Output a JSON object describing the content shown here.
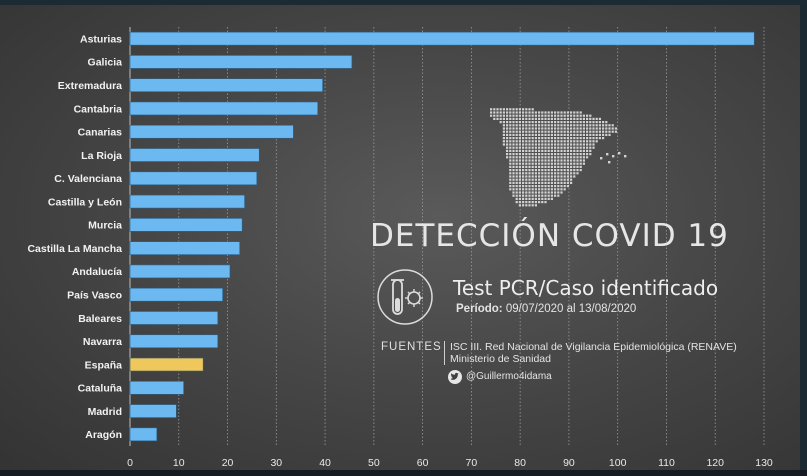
{
  "chart_data": {
    "type": "bar",
    "orientation": "horizontal",
    "title": "DETECCIÓN COVID 19",
    "subtitle": "Test PCR/Caso identificado",
    "categories": [
      "Asturias",
      "Galicia",
      "Extremadura",
      "Cantabria",
      "Canarias",
      "La Rioja",
      "C. Valenciana",
      "Castilla y León",
      "Murcia",
      "Castilla La Mancha",
      "Andalucía",
      "País Vasco",
      "Baleares",
      "Navarra",
      "España",
      "Cataluña",
      "Madrid",
      "Aragón"
    ],
    "values": [
      128,
      45.5,
      39.5,
      38.5,
      33.5,
      26.5,
      26,
      23.5,
      23,
      22.5,
      20.5,
      19,
      18,
      18,
      15,
      11,
      9.5,
      5.5
    ],
    "highlight": "España",
    "xlim": [
      0,
      130
    ],
    "xticks": [
      0,
      10,
      20,
      30,
      40,
      50,
      60,
      70,
      80,
      90,
      100,
      110,
      120,
      130
    ],
    "xlabel": "",
    "ylabel": "",
    "grid": true,
    "colors": {
      "bar": "#6cb8f0",
      "highlight": "#f0c75a",
      "bar_edge": "#2b5f86"
    }
  },
  "info": {
    "period_label": "Período:",
    "period_value": "09/07/2020 al 13/08/2020",
    "sources_label": "FUENTES",
    "sources_line1": "ISC III. Red Nacional de Vigilancia Epidemiológica (RENAVE)",
    "sources_line2": "Ministerio de Sanidad",
    "twitter": "@Guillermo4idama"
  }
}
